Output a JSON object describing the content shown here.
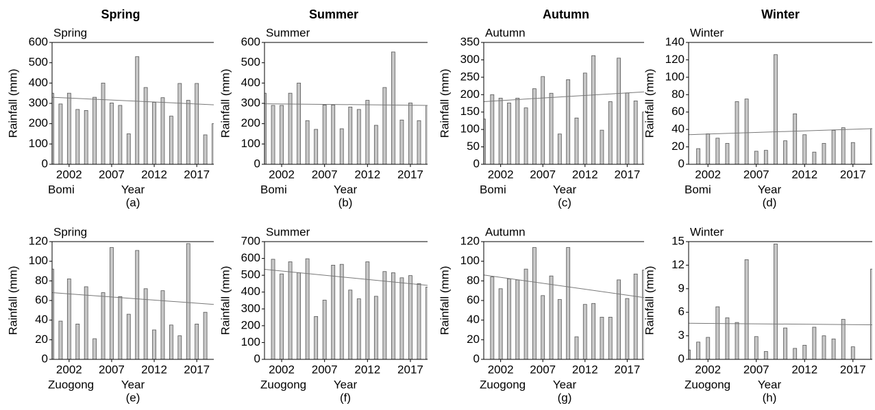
{
  "column_titles": [
    "Spring",
    "Summer",
    "Autumn",
    "Winter"
  ],
  "chart_data": [
    {
      "type": "bar",
      "title": "Spring",
      "ylabel": "Rainfall (mm)",
      "xlabel": "Year",
      "station": "Bomi",
      "caption": "(a)",
      "color": "#c8c8c8",
      "x": [
        2000,
        2001,
        2002,
        2003,
        2004,
        2005,
        2006,
        2007,
        2008,
        2009,
        2010,
        2011,
        2012,
        2013,
        2014,
        2015,
        2016,
        2017,
        2018,
        2019
      ],
      "values": [
        350,
        297,
        350,
        270,
        265,
        330,
        400,
        302,
        290,
        150,
        530,
        378,
        305,
        328,
        237,
        398,
        315,
        398,
        145,
        200
      ],
      "xlim": [
        2000,
        2019
      ],
      "xticks": [
        2002,
        2007,
        2012,
        2017
      ],
      "ylim": [
        0,
        600
      ],
      "yticks": [
        0,
        100,
        200,
        300,
        400,
        500,
        600
      ],
      "trend": {
        "x": [
          2000,
          2019
        ],
        "values": [
          330,
          293
        ]
      }
    },
    {
      "type": "bar",
      "title": "Summer",
      "ylabel": "Rainfall (mm)",
      "xlabel": "Year",
      "station": "Bomi",
      "caption": "(b)",
      "color": "#c8c8c8",
      "x": [
        2000,
        2001,
        2002,
        2003,
        2004,
        2005,
        2006,
        2007,
        2008,
        2009,
        2010,
        2011,
        2012,
        2013,
        2014,
        2015,
        2016,
        2017,
        2018,
        2019
      ],
      "values": [
        350,
        290,
        290,
        350,
        400,
        215,
        172,
        292,
        292,
        175,
        282,
        270,
        315,
        192,
        378,
        553,
        218,
        302,
        215,
        290
      ],
      "xlim": [
        2000,
        2019
      ],
      "xticks": [
        2002,
        2007,
        2012,
        2017
      ],
      "ylim": [
        0,
        600
      ],
      "yticks": [
        0,
        100,
        200,
        300,
        400,
        500,
        600
      ],
      "trend": {
        "x": [
          2000,
          2019
        ],
        "values": [
          298,
          290
        ]
      }
    },
    {
      "type": "bar",
      "title": "Autumn",
      "ylabel": "Rainfall (mm)",
      "xlabel": "Year",
      "station": "Bomi",
      "caption": "(c)",
      "color": "#c8c8c8",
      "x": [
        2000,
        2001,
        2002,
        2003,
        2004,
        2005,
        2006,
        2007,
        2008,
        2009,
        2010,
        2011,
        2012,
        2013,
        2014,
        2015,
        2016,
        2017,
        2018,
        2019
      ],
      "values": [
        130,
        200,
        190,
        176,
        190,
        162,
        217,
        252,
        204,
        87,
        243,
        133,
        262,
        312,
        98,
        180,
        305,
        205,
        182,
        150
      ],
      "xlim": [
        2000,
        2019
      ],
      "xticks": [
        2002,
        2007,
        2012,
        2017
      ],
      "ylim": [
        0,
        350
      ],
      "yticks": [
        0,
        50,
        100,
        150,
        200,
        250,
        300,
        350
      ],
      "trend": {
        "x": [
          2000,
          2019
        ],
        "values": [
          180,
          208
        ]
      }
    },
    {
      "type": "bar",
      "title": "Winter",
      "ylabel": "Rainfall (mm)",
      "xlabel": "Year",
      "station": "Bomi",
      "caption": "(d)",
      "color": "#c8c8c8",
      "x": [
        2000,
        2001,
        2002,
        2003,
        2004,
        2005,
        2006,
        2007,
        2008,
        2009,
        2010,
        2011,
        2012,
        2013,
        2014,
        2015,
        2016,
        2017,
        2018,
        2019
      ],
      "values": [
        null,
        18,
        35,
        30,
        24,
        72,
        75,
        15,
        16,
        126,
        27,
        58,
        34,
        14,
        24,
        39,
        42,
        25,
        null,
        41
      ],
      "xlim": [
        2000,
        2019
      ],
      "xticks": [
        2002,
        2007,
        2012,
        2017
      ],
      "ylim": [
        0,
        140
      ],
      "yticks": [
        0,
        20,
        40,
        60,
        80,
        100,
        120,
        140
      ],
      "trend": {
        "x": [
          2000,
          2019
        ],
        "values": [
          34,
          41
        ]
      }
    },
    {
      "type": "bar",
      "title": "Spring",
      "ylabel": "Rainfall (mm)",
      "xlabel": "Year",
      "station": "Zuogong",
      "caption": "(e)",
      "color": "#c8c8c8",
      "x": [
        2000,
        2001,
        2002,
        2003,
        2004,
        2005,
        2006,
        2007,
        2008,
        2009,
        2010,
        2011,
        2012,
        2013,
        2014,
        2015,
        2016,
        2017,
        2018,
        2019
      ],
      "values": [
        92,
        39,
        82,
        36,
        74,
        21,
        68,
        114,
        64,
        46,
        111,
        72,
        30,
        70,
        35,
        24,
        118,
        36,
        48,
        null
      ],
      "xlim": [
        2000,
        2019
      ],
      "xticks": [
        2002,
        2007,
        2012,
        2017
      ],
      "ylim": [
        0,
        120
      ],
      "yticks": [
        0,
        20,
        40,
        60,
        80,
        100,
        120
      ],
      "trend": {
        "x": [
          2000,
          2019
        ],
        "values": [
          68,
          56
        ]
      }
    },
    {
      "type": "bar",
      "title": "Summer",
      "ylabel": "Rainfall (mm)",
      "xlabel": "Year",
      "station": "Zuogong",
      "caption": "(f)",
      "color": "#c8c8c8",
      "x": [
        2000,
        2001,
        2002,
        2003,
        2004,
        2005,
        2006,
        2007,
        2008,
        2009,
        2010,
        2011,
        2012,
        2013,
        2014,
        2015,
        2016,
        2017,
        2018,
        2019
      ],
      "values": [
        null,
        595,
        508,
        580,
        515,
        598,
        255,
        352,
        560,
        565,
        412,
        360,
        580,
        375,
        522,
        515,
        485,
        498,
        450,
        430
      ],
      "xlim": [
        2000,
        2019
      ],
      "xticks": [
        2002,
        2007,
        2012,
        2017
      ],
      "ylim": [
        0,
        700
      ],
      "yticks": [
        0,
        100,
        200,
        300,
        400,
        500,
        600,
        700
      ],
      "trend": {
        "x": [
          2000,
          2019
        ],
        "values": [
          535,
          440
        ]
      }
    },
    {
      "type": "bar",
      "title": "Autumn",
      "ylabel": "Rainfall (mm)",
      "xlabel": "Year",
      "station": "Zuogong",
      "caption": "(g)",
      "color": "#c8c8c8",
      "x": [
        2000,
        2001,
        2002,
        2003,
        2004,
        2005,
        2006,
        2007,
        2008,
        2009,
        2010,
        2011,
        2012,
        2013,
        2014,
        2015,
        2016,
        2017,
        2018,
        2019
      ],
      "values": [
        null,
        84,
        72,
        82,
        81,
        92,
        114,
        65,
        85,
        61,
        114,
        23,
        56,
        57,
        43,
        43,
        81,
        62,
        87,
        91
      ],
      "xlim": [
        2000,
        2019
      ],
      "xticks": [
        2002,
        2007,
        2012,
        2017
      ],
      "ylim": [
        0,
        120
      ],
      "yticks": [
        0,
        20,
        40,
        60,
        80,
        100,
        120
      ],
      "trend": {
        "x": [
          2000,
          2019
        ],
        "values": [
          86,
          63
        ]
      }
    },
    {
      "type": "bar",
      "title": "Winter",
      "ylabel": "Rainfall (mm)",
      "xlabel": "Year",
      "station": "Zuogong",
      "caption": "(h)",
      "color": "#c8c8c8",
      "x": [
        2000,
        2001,
        2002,
        2003,
        2004,
        2005,
        2006,
        2007,
        2008,
        2009,
        2010,
        2011,
        2012,
        2013,
        2014,
        2015,
        2016,
        2017,
        2018,
        2019
      ],
      "values": [
        1.2,
        2.2,
        2.8,
        6.7,
        5.3,
        4.7,
        12.7,
        2.9,
        1.0,
        14.7,
        4.0,
        1.4,
        1.8,
        4.1,
        3.0,
        2.6,
        5.1,
        1.6,
        null,
        11.5
      ],
      "xlim": [
        2000,
        2019
      ],
      "xticks": [
        2002,
        2007,
        2012,
        2017
      ],
      "ylim": [
        0,
        15
      ],
      "yticks": [
        0,
        3,
        6,
        9,
        12,
        15
      ],
      "trend": {
        "x": [
          2000,
          2019
        ],
        "values": [
          4.6,
          4.4
        ]
      }
    }
  ]
}
